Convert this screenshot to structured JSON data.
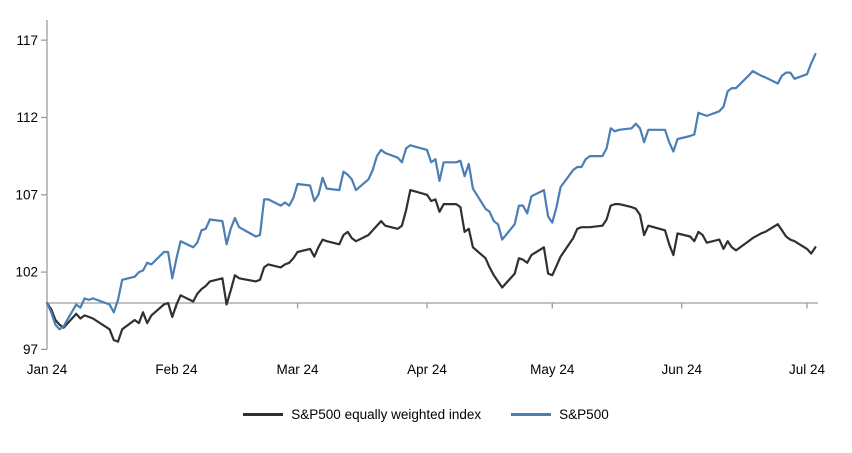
{
  "chart_data": {
    "type": "line",
    "title": "",
    "xlabel": "",
    "ylabel": "",
    "grid": "single horizontal baseline at 100",
    "legend_position": "bottom-center",
    "colors": {
      "axis": "#9d9d9d",
      "baseline": "#9d9d9d",
      "text": "#000000",
      "background": "#ffffff"
    },
    "x_axis": {
      "tick_labels": [
        "Jan 24",
        "Feb 24",
        "Mar 24",
        "Apr 24",
        "May 24",
        "Jun 24",
        "Jul 24"
      ],
      "tick_day_offsets": [
        0,
        31,
        60,
        91,
        121,
        152,
        182
      ],
      "day_range": [
        0,
        184
      ]
    },
    "y_axis": {
      "tick_labels": [
        "97",
        "102",
        "107",
        "112",
        "117"
      ],
      "ticks": [
        97,
        102,
        107,
        112,
        117
      ],
      "range": [
        97,
        117
      ],
      "baseline_value": 100
    },
    "series": [
      {
        "name": "S&P500 equally weighted index",
        "color": "#303030",
        "points": [
          [
            0,
            100
          ],
          [
            1,
            99.6
          ],
          [
            2,
            98.9
          ],
          [
            3,
            98.6
          ],
          [
            4,
            98.4
          ],
          [
            7,
            99.3
          ],
          [
            8,
            99.0
          ],
          [
            9,
            99.2
          ],
          [
            10,
            99.1
          ],
          [
            11,
            99.0
          ],
          [
            15,
            98.3
          ],
          [
            16,
            97.6
          ],
          [
            17,
            97.5
          ],
          [
            18,
            98.3
          ],
          [
            21,
            98.9
          ],
          [
            22,
            98.7
          ],
          [
            23,
            99.4
          ],
          [
            24,
            98.7
          ],
          [
            25,
            99.2
          ],
          [
            28,
            99.9
          ],
          [
            29,
            100.0
          ],
          [
            30,
            99.1
          ],
          [
            31,
            99.9
          ],
          [
            32,
            100.5
          ],
          [
            35,
            100.1
          ],
          [
            36,
            100.6
          ],
          [
            37,
            100.9
          ],
          [
            38,
            101.1
          ],
          [
            39,
            101.4
          ],
          [
            42,
            101.6
          ],
          [
            43,
            99.9
          ],
          [
            44,
            100.8
          ],
          [
            45,
            101.8
          ],
          [
            46,
            101.6
          ],
          [
            50,
            101.4
          ],
          [
            51,
            101.5
          ],
          [
            52,
            102.3
          ],
          [
            53,
            102.5
          ],
          [
            56,
            102.3
          ],
          [
            57,
            102.5
          ],
          [
            58,
            102.6
          ],
          [
            59,
            102.9
          ],
          [
            60,
            103.3
          ],
          [
            63,
            103.5
          ],
          [
            64,
            103.0
          ],
          [
            65,
            103.6
          ],
          [
            66,
            104.1
          ],
          [
            67,
            104.0
          ],
          [
            70,
            103.8
          ],
          [
            71,
            104.4
          ],
          [
            72,
            104.6
          ],
          [
            73,
            104.2
          ],
          [
            74,
            104.0
          ],
          [
            77,
            104.4
          ],
          [
            78,
            104.7
          ],
          [
            79,
            105.0
          ],
          [
            80,
            105.3
          ],
          [
            81,
            105.0
          ],
          [
            84,
            104.8
          ],
          [
            85,
            105.0
          ],
          [
            86,
            106.0
          ],
          [
            87,
            107.3
          ],
          [
            91,
            107.0
          ],
          [
            92,
            106.6
          ],
          [
            93,
            106.7
          ],
          [
            94,
            105.9
          ],
          [
            95,
            106.4
          ],
          [
            98,
            106.4
          ],
          [
            99,
            106.2
          ],
          [
            100,
            104.6
          ],
          [
            101,
            104.8
          ],
          [
            102,
            103.6
          ],
          [
            105,
            102.9
          ],
          [
            106,
            102.3
          ],
          [
            107,
            101.8
          ],
          [
            108,
            101.4
          ],
          [
            109,
            101.0
          ],
          [
            112,
            101.9
          ],
          [
            113,
            102.9
          ],
          [
            114,
            102.8
          ],
          [
            115,
            102.6
          ],
          [
            116,
            103.1
          ],
          [
            119,
            103.6
          ],
          [
            120,
            101.9
          ],
          [
            121,
            101.8
          ],
          [
            122,
            102.4
          ],
          [
            123,
            103.0
          ],
          [
            126,
            104.2
          ],
          [
            127,
            104.8
          ],
          [
            128,
            104.9
          ],
          [
            129,
            104.9
          ],
          [
            130,
            104.9
          ],
          [
            133,
            105.0
          ],
          [
            134,
            105.4
          ],
          [
            135,
            106.3
          ],
          [
            136,
            106.4
          ],
          [
            137,
            106.4
          ],
          [
            140,
            106.2
          ],
          [
            141,
            106.1
          ],
          [
            142,
            105.7
          ],
          [
            143,
            104.4
          ],
          [
            144,
            105.0
          ],
          [
            148,
            104.7
          ],
          [
            149,
            103.8
          ],
          [
            150,
            103.1
          ],
          [
            151,
            104.5
          ],
          [
            154,
            104.3
          ],
          [
            155,
            104.0
          ],
          [
            156,
            104.6
          ],
          [
            157,
            104.4
          ],
          [
            158,
            103.9
          ],
          [
            161,
            104.1
          ],
          [
            162,
            103.5
          ],
          [
            163,
            104.0
          ],
          [
            164,
            103.6
          ],
          [
            165,
            103.4
          ],
          [
            168,
            104.0
          ],
          [
            169,
            104.2
          ],
          [
            171,
            104.5
          ],
          [
            172,
            104.6
          ],
          [
            175,
            105.1
          ],
          [
            176,
            104.7
          ],
          [
            177,
            104.3
          ],
          [
            178,
            104.1
          ],
          [
            179,
            104.0
          ],
          [
            182,
            103.5
          ],
          [
            183,
            103.2
          ],
          [
            184,
            103.6
          ]
        ]
      },
      {
        "name": "S&P500",
        "color": "#4a7eb5",
        "points": [
          [
            0,
            100
          ],
          [
            1,
            99.4
          ],
          [
            2,
            98.6
          ],
          [
            3,
            98.3
          ],
          [
            4,
            98.5
          ],
          [
            7,
            99.9
          ],
          [
            8,
            99.7
          ],
          [
            9,
            100.3
          ],
          [
            10,
            100.2
          ],
          [
            11,
            100.3
          ],
          [
            15,
            99.9
          ],
          [
            16,
            99.4
          ],
          [
            17,
            100.2
          ],
          [
            18,
            101.5
          ],
          [
            21,
            101.7
          ],
          [
            22,
            102.0
          ],
          [
            23,
            102.1
          ],
          [
            24,
            102.6
          ],
          [
            25,
            102.5
          ],
          [
            28,
            103.3
          ],
          [
            29,
            103.3
          ],
          [
            30,
            101.6
          ],
          [
            31,
            102.9
          ],
          [
            32,
            104.0
          ],
          [
            35,
            103.6
          ],
          [
            36,
            103.9
          ],
          [
            37,
            104.7
          ],
          [
            38,
            104.8
          ],
          [
            39,
            105.4
          ],
          [
            42,
            105.3
          ],
          [
            43,
            103.8
          ],
          [
            44,
            104.8
          ],
          [
            45,
            105.5
          ],
          [
            46,
            104.9
          ],
          [
            50,
            104.3
          ],
          [
            51,
            104.4
          ],
          [
            52,
            106.7
          ],
          [
            53,
            106.7
          ],
          [
            56,
            106.3
          ],
          [
            57,
            106.5
          ],
          [
            58,
            106.3
          ],
          [
            59,
            106.8
          ],
          [
            60,
            107.7
          ],
          [
            63,
            107.6
          ],
          [
            64,
            106.6
          ],
          [
            65,
            107.0
          ],
          [
            66,
            108.1
          ],
          [
            67,
            107.4
          ],
          [
            70,
            107.3
          ],
          [
            71,
            108.5
          ],
          [
            72,
            108.3
          ],
          [
            73,
            108.0
          ],
          [
            74,
            107.3
          ],
          [
            77,
            108.0
          ],
          [
            78,
            108.6
          ],
          [
            79,
            109.5
          ],
          [
            80,
            109.9
          ],
          [
            81,
            109.7
          ],
          [
            84,
            109.4
          ],
          [
            85,
            109.1
          ],
          [
            86,
            110.0
          ],
          [
            87,
            110.2
          ],
          [
            91,
            109.9
          ],
          [
            92,
            109.1
          ],
          [
            93,
            109.3
          ],
          [
            94,
            107.9
          ],
          [
            95,
            109.1
          ],
          [
            98,
            109.1
          ],
          [
            99,
            109.2
          ],
          [
            100,
            108.2
          ],
          [
            101,
            109.0
          ],
          [
            102,
            107.4
          ],
          [
            105,
            106.1
          ],
          [
            106,
            105.9
          ],
          [
            107,
            105.3
          ],
          [
            108,
            105.1
          ],
          [
            109,
            104.1
          ],
          [
            112,
            105.1
          ],
          [
            113,
            106.3
          ],
          [
            114,
            106.3
          ],
          [
            115,
            105.8
          ],
          [
            116,
            106.9
          ],
          [
            119,
            107.3
          ],
          [
            120,
            105.6
          ],
          [
            121,
            105.2
          ],
          [
            122,
            106.2
          ],
          [
            123,
            107.5
          ],
          [
            126,
            108.6
          ],
          [
            127,
            108.8
          ],
          [
            128,
            108.8
          ],
          [
            129,
            109.3
          ],
          [
            130,
            109.5
          ],
          [
            133,
            109.5
          ],
          [
            134,
            110.0
          ],
          [
            135,
            111.3
          ],
          [
            136,
            111.1
          ],
          [
            137,
            111.2
          ],
          [
            140,
            111.3
          ],
          [
            141,
            111.6
          ],
          [
            142,
            111.3
          ],
          [
            143,
            110.4
          ],
          [
            144,
            111.2
          ],
          [
            148,
            111.2
          ],
          [
            149,
            110.4
          ],
          [
            150,
            109.8
          ],
          [
            151,
            110.6
          ],
          [
            154,
            110.8
          ],
          [
            155,
            110.9
          ],
          [
            156,
            112.3
          ],
          [
            157,
            112.2
          ],
          [
            158,
            112.1
          ],
          [
            161,
            112.4
          ],
          [
            162,
            112.7
          ],
          [
            163,
            113.7
          ],
          [
            164,
            113.9
          ],
          [
            165,
            113.9
          ],
          [
            168,
            114.7
          ],
          [
            169,
            115.0
          ],
          [
            171,
            114.7
          ],
          [
            172,
            114.6
          ],
          [
            175,
            114.2
          ],
          [
            176,
            114.7
          ],
          [
            177,
            114.9
          ],
          [
            178,
            114.9
          ],
          [
            179,
            114.5
          ],
          [
            182,
            114.8
          ],
          [
            183,
            115.5
          ],
          [
            184,
            116.1
          ]
        ]
      }
    ]
  },
  "legend": {
    "items": [
      {
        "label": "S&P500 equally weighted index"
      },
      {
        "label": "S&P500"
      }
    ]
  }
}
